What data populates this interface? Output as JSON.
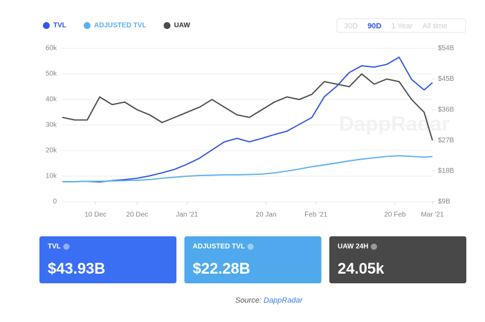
{
  "chart_data": {
    "type": "line",
    "range_buttons": [
      "30D",
      "90D",
      "1 Year",
      "All time"
    ],
    "active_range": "90D",
    "watermark": "DappRadar",
    "x": [
      "2020-12-02",
      "2020-12-05",
      "2020-12-08",
      "2020-12-11",
      "2020-12-14",
      "2020-12-17",
      "2020-12-20",
      "2020-12-23",
      "2020-12-26",
      "2020-12-29",
      "2021-01-01",
      "2021-01-04",
      "2021-01-07",
      "2021-01-10",
      "2021-01-13",
      "2021-01-16",
      "2021-01-19",
      "2021-01-22",
      "2021-01-25",
      "2021-01-28",
      "2021-01-31",
      "2021-02-03",
      "2021-02-06",
      "2021-02-09",
      "2021-02-12",
      "2021-02-15",
      "2021-02-18",
      "2021-02-21",
      "2021-02-24",
      "2021-02-27",
      "2021-03-01"
    ],
    "xlim": [
      "2020-12-02",
      "2021-03-01"
    ],
    "xticks": [
      {
        "value": "2020-12-10",
        "label": "10 Dec"
      },
      {
        "value": "2020-12-20",
        "label": "20 Dec"
      },
      {
        "value": "2021-01-01",
        "label": "Jan '21"
      },
      {
        "value": "2021-01-20",
        "label": "20 Jan"
      },
      {
        "value": "2021-02-01",
        "label": "Feb '21"
      },
      {
        "value": "2021-02-20",
        "label": "20 Feb"
      },
      {
        "value": "2021-03-01",
        "label": "Mar '21"
      }
    ],
    "ylim": [
      0,
      60000
    ],
    "yticks": [
      0,
      {
        "value": 10000,
        "label": "10k"
      },
      {
        "value": 20000,
        "label": "20k"
      },
      {
        "value": 30000,
        "label": "30k"
      },
      {
        "value": 40000,
        "label": "40k"
      },
      {
        "value": 50000,
        "label": "50k"
      },
      {
        "value": 60000,
        "label": "60k"
      }
    ],
    "y2lim": [
      9,
      54
    ],
    "y2ticks": [
      {
        "value": 9,
        "label": "$9B"
      },
      {
        "value": 18,
        "label": "$18B"
      },
      {
        "value": 27,
        "label": "$27B"
      },
      {
        "value": 36,
        "label": "$36B"
      },
      {
        "value": 45,
        "label": "$45B"
      },
      {
        "value": 54,
        "label": "$54B"
      }
    ],
    "grid": true,
    "series": [
      {
        "name": "TVL",
        "color": "#3256e0",
        "axis": "y2",
        "values": [
          14.9,
          14.9,
          15.0,
          14.8,
          15.2,
          15.5,
          15.9,
          16.6,
          17.5,
          18.5,
          20.0,
          21.8,
          24.2,
          26.6,
          27.6,
          26.6,
          27.6,
          28.7,
          29.7,
          31.7,
          33.7,
          39.8,
          42.9,
          46.9,
          48.9,
          48.5,
          49.3,
          51.4,
          44.9,
          41.8,
          43.93
        ]
      },
      {
        "name": "ADJUSTED TVL",
        "color": "#5ab0ef",
        "axis": "y2",
        "values": [
          14.9,
          14.9,
          15.0,
          15.0,
          15.1,
          15.2,
          15.3,
          15.5,
          15.9,
          16.2,
          16.5,
          16.7,
          16.8,
          16.9,
          16.9,
          17.0,
          17.1,
          17.5,
          18.0,
          18.6,
          19.3,
          19.8,
          20.4,
          21.0,
          21.5,
          21.9,
          22.3,
          22.5,
          22.3,
          22.1,
          22.28
        ]
      },
      {
        "name": "UAW",
        "color": "#4a4a4a",
        "values": [
          33000,
          32000,
          32000,
          41000,
          38000,
          39000,
          36000,
          34000,
          31000,
          33000,
          35000,
          37000,
          40000,
          37000,
          34000,
          33000,
          36000,
          39000,
          41000,
          40000,
          42000,
          47000,
          46000,
          45000,
          50000,
          46000,
          48000,
          47000,
          40000,
          35000,
          24050
        ]
      }
    ]
  },
  "cards": [
    {
      "title": "TVL",
      "value": "$43.93B",
      "color": "#3a6ff3"
    },
    {
      "title": "ADJUSTED TVL",
      "value": "$22.28B",
      "color": "#4fa9ec"
    },
    {
      "title": "UAW 24H",
      "value": "24.05k",
      "color": "#484848"
    }
  ],
  "source": {
    "label": "Source:",
    "name": "DappRadar"
  }
}
